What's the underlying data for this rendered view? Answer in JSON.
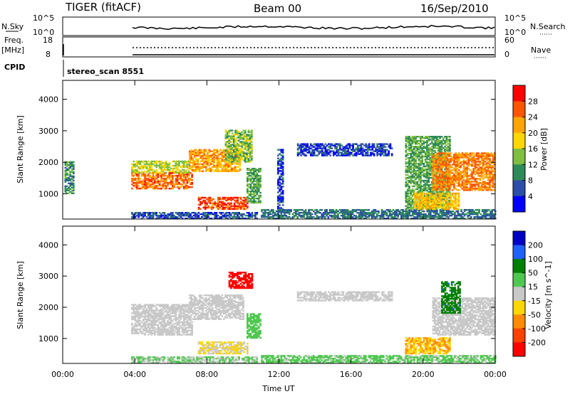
{
  "header": {
    "station": "TIGER (fitACF)",
    "beam": "Beam 00",
    "date": "16/Sep/2010"
  },
  "summary": {
    "nsky_label": "N.Sky",
    "nsky_ticks": [
      "10^5",
      "10^0"
    ],
    "nsearch_label": "N.Search",
    "nsearch_ticks": [
      "10^5",
      "10^0"
    ],
    "freq_label": "Freq.",
    "freq_unit": "[MHz]",
    "freq_ticks": [
      "18",
      "8"
    ],
    "nave_label": "Nave",
    "nave_ticks": [
      "60",
      "0"
    ],
    "cpid_label": "CPID",
    "cpid_value": "stereo_scan 8551"
  },
  "colors": {
    "power": [
      "#0000ff",
      "#2c4fa8",
      "#2e8b57",
      "#7fbf3f",
      "#ffd700",
      "#ffa500",
      "#ff5500",
      "#ff0000"
    ],
    "velocity": [
      "#0000c8",
      "#2060ff",
      "#008000",
      "#50c850",
      "#c8c8c8",
      "#ffd700",
      "#ff8c00",
      "#ff4000",
      "#ff0000"
    ]
  },
  "chart_data": [
    {
      "type": "heatmap",
      "title": "Power",
      "ylabel": "Slant Range [km]",
      "xlabel": "Time UT",
      "x_ticks": [
        "00:00",
        "04:00",
        "08:00",
        "12:00",
        "16:00",
        "20:00",
        "00:00"
      ],
      "x_range": [
        "00:00",
        "24:00"
      ],
      "y_ticks": [
        1000,
        2000,
        3000,
        4000
      ],
      "ylim": [
        200,
        4600
      ],
      "colorbar": {
        "label": "Power [dB]",
        "ticks": [
          4,
          8,
          12,
          16,
          20,
          24,
          28
        ],
        "range": [
          0,
          32
        ]
      },
      "regions": [
        {
          "t": [
            3.8,
            7.2
          ],
          "r": [
            1150,
            1650
          ],
          "v": 25
        },
        {
          "t": [
            3.8,
            7.0
          ],
          "r": [
            1650,
            2050
          ],
          "v": 16
        },
        {
          "t": [
            3.8,
            10.8
          ],
          "r": [
            200,
            420
          ],
          "v": 6
        },
        {
          "t": [
            7.0,
            9.8
          ],
          "r": [
            1700,
            2400
          ],
          "v": 22
        },
        {
          "t": [
            9.0,
            10.5
          ],
          "r": [
            2000,
            3000
          ],
          "v": 14
        },
        {
          "t": [
            7.5,
            10.2
          ],
          "r": [
            500,
            900
          ],
          "v": 27
        },
        {
          "t": [
            10.2,
            11.0
          ],
          "r": [
            700,
            1800
          ],
          "v": 12
        },
        {
          "t": [
            0.1,
            0.6
          ],
          "r": [
            1000,
            2000
          ],
          "v": 10
        },
        {
          "t": [
            11.9,
            12.2
          ],
          "r": [
            400,
            2400
          ],
          "v": 5
        },
        {
          "t": [
            13.0,
            18.3
          ],
          "r": [
            2200,
            2600
          ],
          "v": 5
        },
        {
          "t": [
            11.0,
            24.0
          ],
          "r": [
            200,
            500
          ],
          "v": 8
        },
        {
          "t": [
            19.0,
            21.5
          ],
          "r": [
            500,
            2800
          ],
          "v": 12
        },
        {
          "t": [
            20.5,
            24.0
          ],
          "r": [
            1100,
            2300
          ],
          "v": 24
        },
        {
          "t": [
            19.5,
            22.0
          ],
          "r": [
            500,
            1000
          ],
          "v": 20
        }
      ]
    },
    {
      "type": "heatmap",
      "title": "Velocity",
      "ylabel": "Slant Range [km]",
      "xlabel": "Time UT",
      "x_ticks": [
        "00:00",
        "04:00",
        "08:00",
        "12:00",
        "16:00",
        "20:00",
        "00:00"
      ],
      "x_range": [
        "00:00",
        "24:00"
      ],
      "y_ticks": [
        1000,
        2000,
        3000,
        4000
      ],
      "ylim": [
        200,
        4600
      ],
      "colorbar": {
        "label": "Velocity [m s^-1]",
        "ticks": [
          200,
          100,
          50,
          15,
          -15,
          -50,
          -100,
          -200
        ],
        "range": [
          -250,
          250
        ]
      },
      "regions": [
        {
          "t": [
            3.8,
            7.2
          ],
          "r": [
            1100,
            1700
          ],
          "v": 0
        },
        {
          "t": [
            3.8,
            7.0
          ],
          "r": [
            1700,
            2100
          ],
          "v": 5
        },
        {
          "t": [
            7.0,
            10.0
          ],
          "r": [
            1600,
            2400
          ],
          "v": 0
        },
        {
          "t": [
            7.5,
            10.2
          ],
          "r": [
            500,
            900
          ],
          "v": -30
        },
        {
          "t": [
            9.2,
            10.5
          ],
          "r": [
            2600,
            3100
          ],
          "v": -220
        },
        {
          "t": [
            10.2,
            11.0
          ],
          "r": [
            1000,
            1800
          ],
          "v": 60
        },
        {
          "t": [
            3.8,
            10.8
          ],
          "r": [
            200,
            400
          ],
          "v": 30
        },
        {
          "t": [
            11.0,
            24.0
          ],
          "r": [
            200,
            450
          ],
          "v": 40
        },
        {
          "t": [
            13.0,
            18.3
          ],
          "r": [
            2200,
            2500
          ],
          "v": 0
        },
        {
          "t": [
            19.0,
            21.5
          ],
          "r": [
            500,
            1000
          ],
          "v": -80
        },
        {
          "t": [
            20.5,
            24.0
          ],
          "r": [
            1100,
            2300
          ],
          "v": 0
        },
        {
          "t": [
            21.0,
            22.0
          ],
          "r": [
            1800,
            2800
          ],
          "v": 120
        }
      ]
    }
  ]
}
